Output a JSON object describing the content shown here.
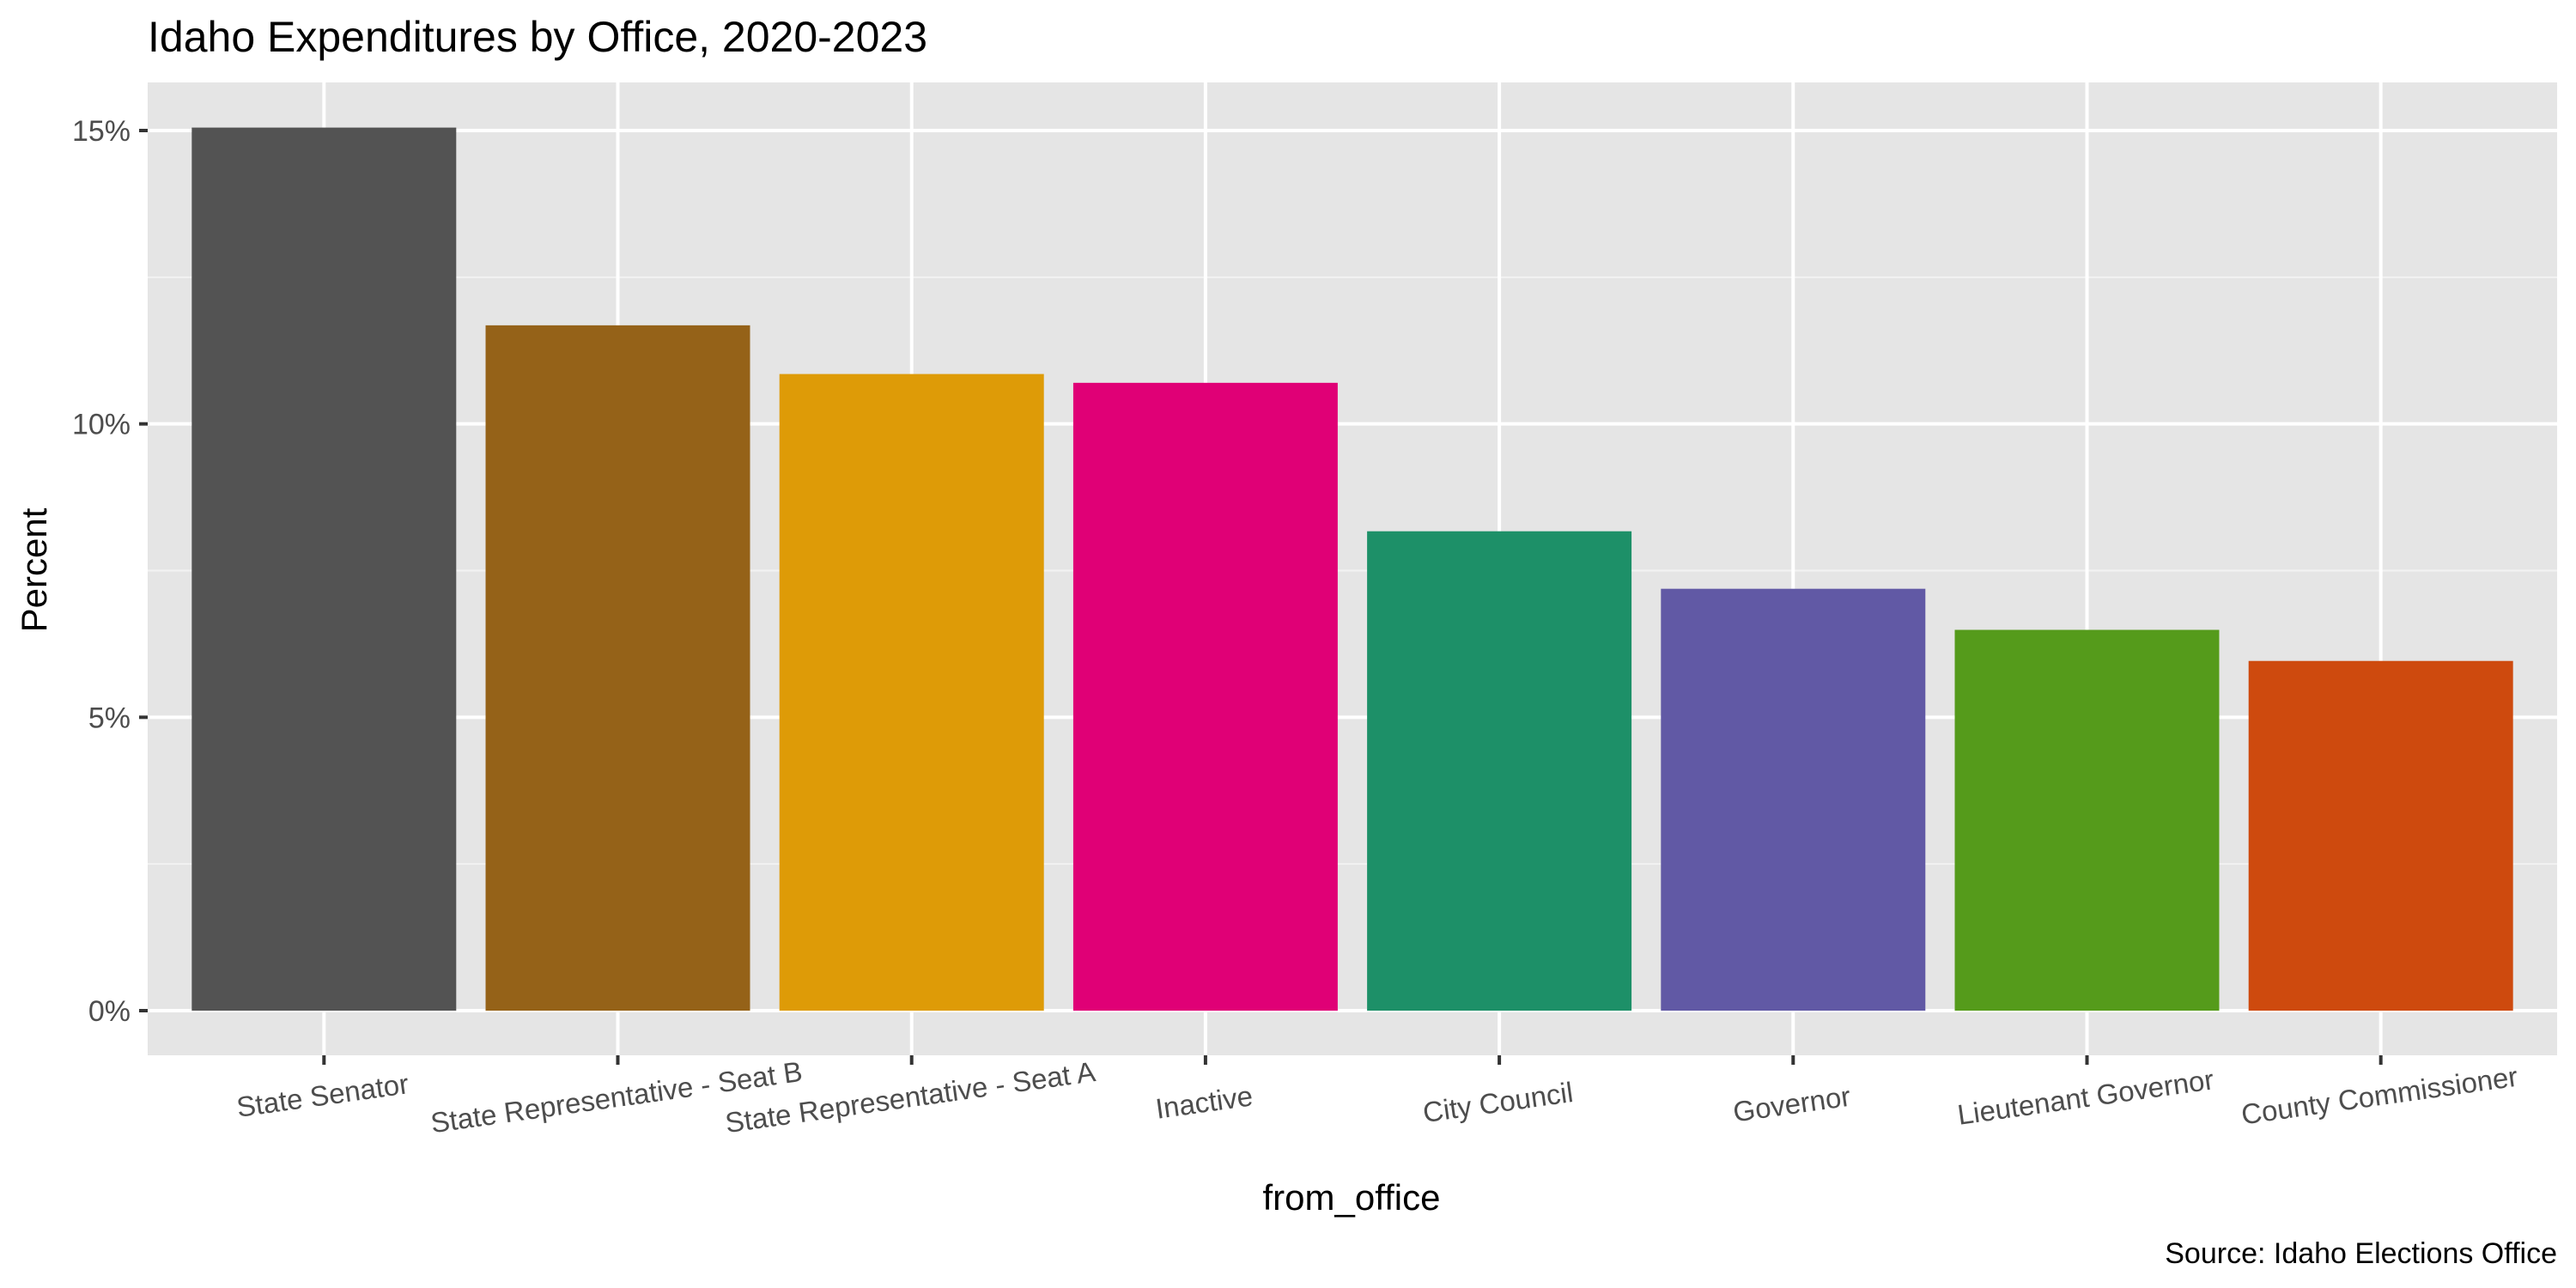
{
  "chart_data": {
    "type": "bar",
    "title": "Idaho Expenditures by Office, 2020-2023",
    "xlabel": "from_office",
    "ylabel": "Percent",
    "caption": "Source: Idaho Elections Office",
    "categories": [
      "State Senator",
      "State Representative - Seat B",
      "State Representative - Seat A",
      "Inactive",
      "City Council",
      "Governor",
      "Lieutenant Governor",
      "County Commissioner"
    ],
    "values": [
      15.05,
      11.68,
      10.85,
      10.7,
      8.17,
      7.19,
      6.49,
      5.96
    ],
    "colors": [
      "#535353",
      "#956218",
      "#de9b07",
      "#e00076",
      "#1d9068",
      "#6159a5",
      "#559b1b",
      "#ce4a0e"
    ],
    "ylim": [
      0,
      15
    ],
    "yticks": [
      0,
      5,
      10,
      15
    ],
    "ytick_labels": [
      "0%",
      "5%",
      "10%",
      "15%"
    ],
    "grid": true,
    "legend": "none"
  }
}
